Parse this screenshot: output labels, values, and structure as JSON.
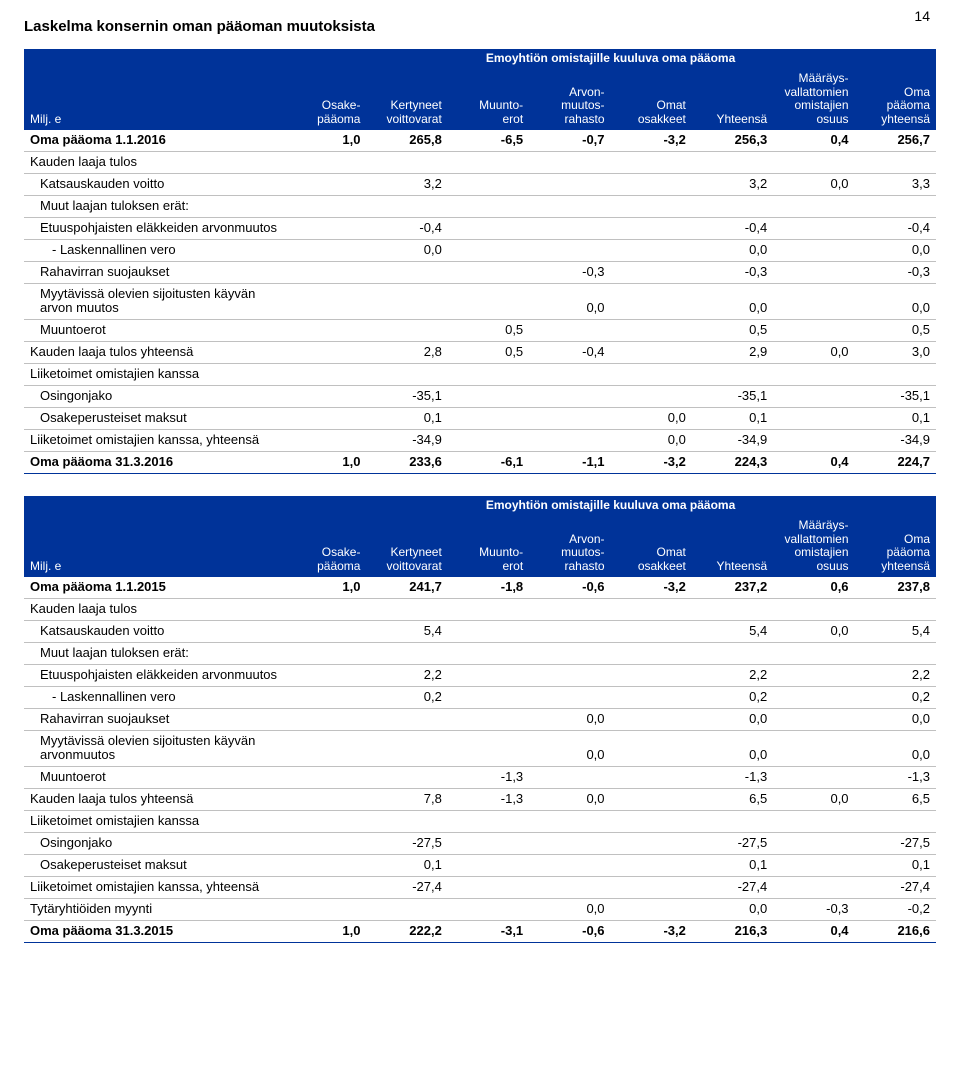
{
  "page_number": "14",
  "title": "Laskelma konsernin oman pääoman muutoksista",
  "subhead": "Emoyhtiön omistajille kuuluva oma pääoma",
  "columns": [
    "Milj. e",
    "Osake-\npääoma",
    "Kertyneet\nvoittovarat",
    "Muunto-\nerot",
    "Arvon-\nmuutos-\nrahasto",
    "Omat\nosakkeet",
    "Yhteensä",
    "Määräys-\nvallattomien\nomistajien\nosuus",
    "Oma\npääoma\nyhteensä"
  ],
  "tables": [
    {
      "rows": [
        {
          "label": "Oma pääoma 1.1.2016",
          "indent": 0,
          "bold": true,
          "big": true,
          "vals": [
            "1,0",
            "265,8",
            "-6,5",
            "-0,7",
            "-3,2",
            "256,3",
            "0,4",
            "256,7"
          ]
        },
        {
          "label": "Kauden laaja tulos",
          "indent": 0,
          "vals": [
            "",
            "",
            "",
            "",
            "",
            "",
            "",
            ""
          ]
        },
        {
          "label": "Katsauskauden voitto",
          "indent": 1,
          "vals": [
            "",
            "3,2",
            "",
            "",
            "",
            "3,2",
            "0,0",
            "3,3"
          ]
        },
        {
          "label": "Muut laajan tuloksen erät:",
          "indent": 1,
          "vals": [
            "",
            "",
            "",
            "",
            "",
            "",
            "",
            ""
          ]
        },
        {
          "label": "Etuuspohjaisten eläkkeiden arvonmuutos",
          "indent": 1,
          "vals": [
            "",
            "-0,4",
            "",
            "",
            "",
            "-0,4",
            "",
            "-0,4"
          ]
        },
        {
          "label": "- Laskennallinen vero",
          "indent": 2,
          "vals": [
            "",
            "0,0",
            "",
            "",
            "",
            "0,0",
            "",
            "0,0"
          ]
        },
        {
          "label": "Rahavirran suojaukset",
          "indent": 1,
          "vals": [
            "",
            "",
            "",
            "-0,3",
            "",
            "-0,3",
            "",
            "-0,3"
          ]
        },
        {
          "label": "Myytävissä olevien sijoitusten käyvän arvon muutos",
          "indent": 1,
          "vals": [
            "",
            "",
            "",
            "0,0",
            "",
            "0,0",
            "",
            "0,0"
          ]
        },
        {
          "label": "Muuntoerot",
          "indent": 1,
          "vals": [
            "",
            "",
            "0,5",
            "",
            "",
            "0,5",
            "",
            "0,5"
          ]
        },
        {
          "label": "Kauden laaja tulos yhteensä",
          "indent": 0,
          "big": true,
          "vals": [
            "",
            "2,8",
            "0,5",
            "-0,4",
            "",
            "2,9",
            "0,0",
            "3,0"
          ]
        },
        {
          "label": "Liiketoimet omistajien kanssa",
          "indent": 0,
          "vals": [
            "",
            "",
            "",
            "",
            "",
            "",
            "",
            ""
          ]
        },
        {
          "label": "Osingonjako",
          "indent": 1,
          "vals": [
            "",
            "-35,1",
            "",
            "",
            "",
            "-35,1",
            "",
            "-35,1"
          ]
        },
        {
          "label": "Osakeperusteiset maksut",
          "indent": 1,
          "vals": [
            "",
            "0,1",
            "",
            "",
            "0,0",
            "0,1",
            "",
            "0,1"
          ]
        },
        {
          "label": "Liiketoimet omistajien kanssa, yhteensä",
          "indent": 0,
          "vals": [
            "",
            "-34,9",
            "",
            "",
            "0,0",
            "-34,9",
            "",
            "-34,9"
          ]
        },
        {
          "label": "Oma pääoma 31.3.2016",
          "indent": 0,
          "bold": true,
          "big": true,
          "bottom": true,
          "vals": [
            "1,0",
            "233,6",
            "-6,1",
            "-1,1",
            "-3,2",
            "224,3",
            "0,4",
            "224,7"
          ]
        }
      ]
    },
    {
      "rows": [
        {
          "label": "Oma pääoma 1.1.2015",
          "indent": 0,
          "bold": true,
          "big": true,
          "vals": [
            "1,0",
            "241,7",
            "-1,8",
            "-0,6",
            "-3,2",
            "237,2",
            "0,6",
            "237,8"
          ]
        },
        {
          "label": "Kauden laaja tulos",
          "indent": 0,
          "vals": [
            "",
            "",
            "",
            "",
            "",
            "",
            "",
            ""
          ]
        },
        {
          "label": "Katsauskauden voitto",
          "indent": 1,
          "vals": [
            "",
            "5,4",
            "",
            "",
            "",
            "5,4",
            "0,0",
            "5,4"
          ]
        },
        {
          "label": "Muut laajan tuloksen erät:",
          "indent": 1,
          "vals": [
            "",
            "",
            "",
            "",
            "",
            "",
            "",
            ""
          ]
        },
        {
          "label": "Etuuspohjaisten eläkkeiden arvonmuutos",
          "indent": 1,
          "vals": [
            "",
            "2,2",
            "",
            "",
            "",
            "2,2",
            "",
            "2,2"
          ]
        },
        {
          "label": "- Laskennallinen vero",
          "indent": 2,
          "vals": [
            "",
            "0,2",
            "",
            "",
            "",
            "0,2",
            "",
            "0,2"
          ]
        },
        {
          "label": "Rahavirran suojaukset",
          "indent": 1,
          "vals": [
            "",
            "",
            "",
            "0,0",
            "",
            "0,0",
            "",
            "0,0"
          ]
        },
        {
          "label": "Myytävissä olevien sijoitusten käyvän arvonmuutos",
          "indent": 1,
          "vals": [
            "",
            "",
            "",
            "0,0",
            "",
            "0,0",
            "",
            "0,0"
          ]
        },
        {
          "label": "Muuntoerot",
          "indent": 1,
          "vals": [
            "",
            "",
            "-1,3",
            "",
            "",
            "-1,3",
            "",
            "-1,3"
          ]
        },
        {
          "label": "Kauden laaja tulos yhteensä",
          "indent": 0,
          "big": true,
          "vals": [
            "",
            "7,8",
            "-1,3",
            "0,0",
            "",
            "6,5",
            "0,0",
            "6,5"
          ]
        },
        {
          "label": "Liiketoimet omistajien kanssa",
          "indent": 0,
          "vals": [
            "",
            "",
            "",
            "",
            "",
            "",
            "",
            ""
          ]
        },
        {
          "label": "Osingonjako",
          "indent": 1,
          "vals": [
            "",
            "-27,5",
            "",
            "",
            "",
            "-27,5",
            "",
            "-27,5"
          ]
        },
        {
          "label": "Osakeperusteiset maksut",
          "indent": 1,
          "vals": [
            "",
            "0,1",
            "",
            "",
            "",
            "0,1",
            "",
            "0,1"
          ]
        },
        {
          "label": "Liiketoimet omistajien kanssa, yhteensä",
          "indent": 0,
          "vals": [
            "",
            "-27,4",
            "",
            "",
            "",
            "-27,4",
            "",
            "-27,4"
          ]
        },
        {
          "label": "Tytäryhtiöiden myynti",
          "indent": 0,
          "vals": [
            "",
            "",
            "",
            "0,0",
            "",
            "0,0",
            "-0,3",
            "-0,2"
          ]
        },
        {
          "label": "Oma pääoma 31.3.2015",
          "indent": 0,
          "bold": true,
          "big": true,
          "bottom": true,
          "vals": [
            "1,0",
            "222,2",
            "-3,1",
            "-0,6",
            "-3,2",
            "216,3",
            "0,4",
            "216,6"
          ]
        }
      ]
    }
  ],
  "colors": {
    "header_bg": "#003399",
    "header_fg": "#ffffff",
    "text": "#000000",
    "rule": "#c0c0c0"
  }
}
